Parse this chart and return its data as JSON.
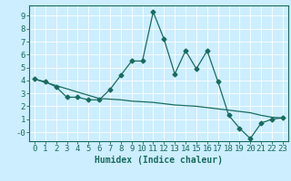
{
  "title": "",
  "xlabel": "Humidex (Indice chaleur)",
  "ylabel": "",
  "bg_color": "#cceeff",
  "line_color": "#1a6b60",
  "grid_color": "#ffffff",
  "x_line1": [
    0,
    1,
    2,
    3,
    4,
    5,
    6,
    7,
    8,
    9,
    10,
    11,
    12,
    13,
    14,
    15,
    16,
    17,
    18,
    19,
    20,
    21,
    22,
    23
  ],
  "y_line1": [
    4.1,
    3.9,
    3.5,
    2.7,
    2.7,
    2.5,
    2.5,
    3.3,
    4.4,
    5.5,
    5.5,
    9.3,
    7.2,
    4.5,
    6.3,
    4.9,
    6.3,
    3.9,
    1.3,
    0.3,
    -0.5,
    0.7,
    1.0,
    1.1
  ],
  "x_line2": [
    0,
    1,
    2,
    3,
    4,
    5,
    6,
    7,
    8,
    9,
    10,
    11,
    12,
    13,
    14,
    15,
    16,
    17,
    18,
    19,
    20,
    21,
    22,
    23
  ],
  "y_line2": [
    4.1,
    3.85,
    3.6,
    3.35,
    3.1,
    2.85,
    2.6,
    2.55,
    2.5,
    2.4,
    2.35,
    2.3,
    2.2,
    2.1,
    2.05,
    2.0,
    1.9,
    1.8,
    1.7,
    1.6,
    1.5,
    1.3,
    1.15,
    1.1
  ],
  "ylim": [
    -0.7,
    9.8
  ],
  "xlim": [
    -0.5,
    23.5
  ],
  "yticks": [
    0,
    1,
    2,
    3,
    4,
    5,
    6,
    7,
    8,
    9
  ],
  "ytick_labels": [
    "-0",
    "1",
    "2",
    "3",
    "4",
    "5",
    "6",
    "7",
    "8",
    "9"
  ],
  "xticks": [
    0,
    1,
    2,
    3,
    4,
    5,
    6,
    7,
    8,
    9,
    10,
    11,
    12,
    13,
    14,
    15,
    16,
    17,
    18,
    19,
    20,
    21,
    22,
    23
  ],
  "fontsize_label": 7,
  "fontsize_tick": 6.5
}
